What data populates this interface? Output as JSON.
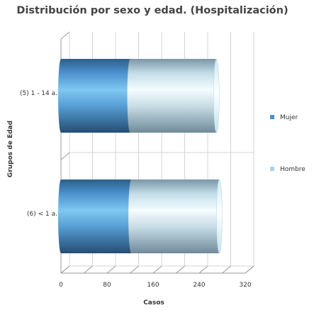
{
  "chart_data": {
    "type": "bar",
    "orientation": "horizontal",
    "stacked": true,
    "style": "3d-cylinder",
    "title": "Distribución por sexo y edad. (Hospitalización)",
    "xlabel": "Casos",
    "ylabel": "Grupos de Edad",
    "categories": [
      "(5) 1 - 14 a.",
      "(6) < 1 a."
    ],
    "series": [
      {
        "name": "Mujer",
        "values": [
          120,
          122
        ],
        "color": "#4a90c8"
      },
      {
        "name": "Hombre",
        "values": [
          150,
          153
        ],
        "color": "#a8d4ec"
      }
    ],
    "xlim": [
      0,
      320
    ],
    "xticks": [
      0,
      80,
      160,
      240,
      320
    ],
    "xtick_labels": [
      "0",
      "80",
      "160",
      "240",
      "320"
    ],
    "grid": true,
    "legend_position": "right"
  }
}
